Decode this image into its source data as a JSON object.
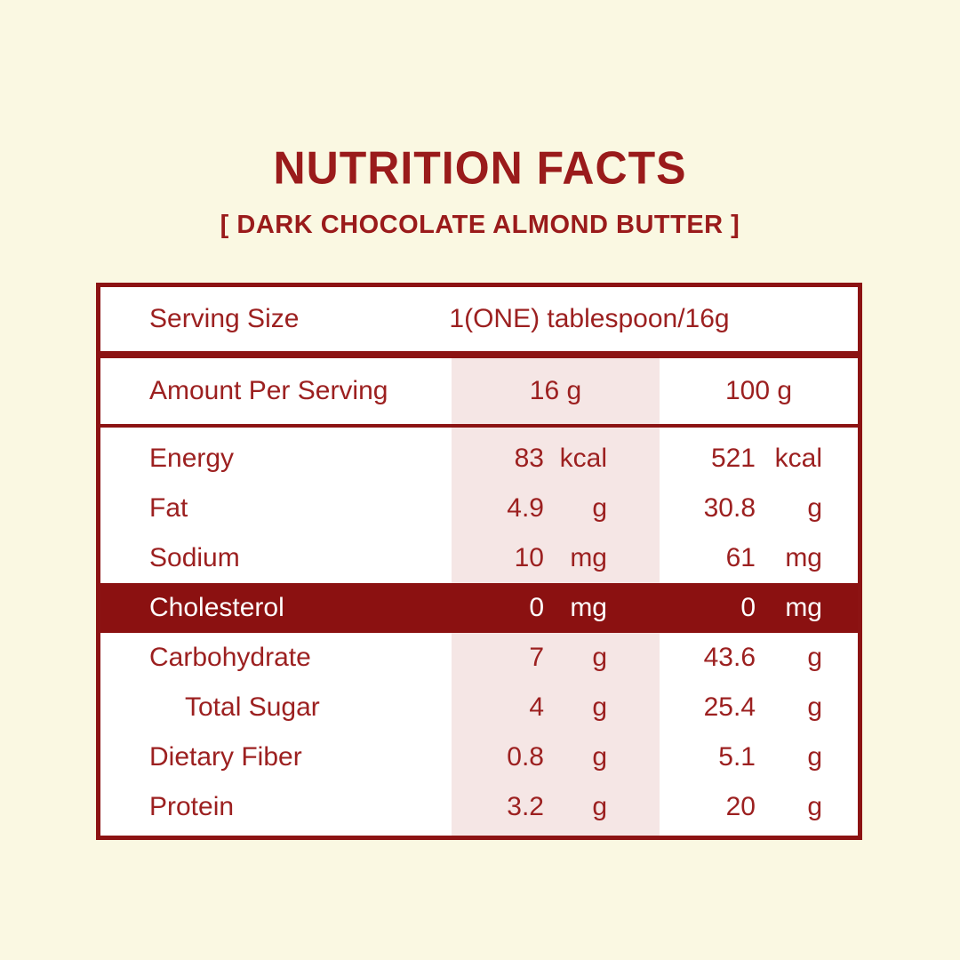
{
  "title": "NUTRITION FACTS",
  "subtitle": "[ DARK CHOCOLATE ALMOND BUTTER ]",
  "colors": {
    "background": "#FAF8E2",
    "border_red": "#8C1313",
    "text_red": "#9C2020",
    "highlight_row_bg": "#8B1111",
    "pink_column": "#F5E6E5"
  },
  "table": {
    "serving": {
      "label": "Serving Size",
      "value": "1(ONE) tablespoon/16g"
    },
    "header": {
      "label": "Amount Per Serving",
      "col1": "16 g",
      "col2": "100 g"
    },
    "rows": [
      {
        "label": "Energy",
        "v1": "83",
        "u1": "kcal",
        "v2": "521",
        "u2": "kcal",
        "highlight": false,
        "indent": false
      },
      {
        "label": "Fat",
        "v1": "4.9",
        "u1": "g",
        "v2": "30.8",
        "u2": "g",
        "highlight": false,
        "indent": false
      },
      {
        "label": "Sodium",
        "v1": "10",
        "u1": "mg",
        "v2": "61",
        "u2": "mg",
        "highlight": false,
        "indent": false
      },
      {
        "label": "Cholesterol",
        "v1": "0",
        "u1": "mg",
        "v2": "0",
        "u2": "mg",
        "highlight": true,
        "indent": false
      },
      {
        "label": "Carbohydrate",
        "v1": "7",
        "u1": "g",
        "v2": "43.6",
        "u2": "g",
        "highlight": false,
        "indent": false
      },
      {
        "label": "Total Sugar",
        "v1": "4",
        "u1": "g",
        "v2": "25.4",
        "u2": "g",
        "highlight": false,
        "indent": true
      },
      {
        "label": "Dietary Fiber",
        "v1": "0.8",
        "u1": "g",
        "v2": "5.1",
        "u2": "g",
        "highlight": false,
        "indent": false
      },
      {
        "label": "Protein",
        "v1": "3.2",
        "u1": "g",
        "v2": "20",
        "u2": "g",
        "highlight": false,
        "indent": false
      }
    ]
  }
}
